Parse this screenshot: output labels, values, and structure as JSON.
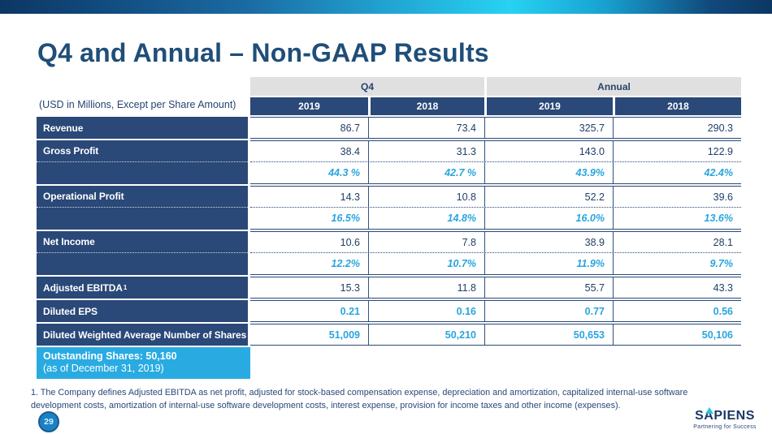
{
  "slide": {
    "title": "Q4 and Annual – Non-GAAP Results",
    "page_number": "29",
    "footnote": "1. The Company defines Adjusted EBITDA as net profit, adjusted for stock-based compensation expense, depreciation and amortization, capitalized internal-use software development costs, amortization of internal-use software development costs, interest expense, provision for income taxes and other income (expenses).",
    "logo": {
      "name": "SAPIENS",
      "tagline": "Partnering for Success"
    }
  },
  "colors": {
    "navy_band": "#2a4878",
    "navy_text": "#1f3f66",
    "accent_cyan": "#29abe2",
    "header_gray": "#e0e0e0",
    "title_navy": "#1f4e79"
  },
  "table": {
    "units_note": "(USD in Millions, Except per Share Amount)",
    "col_groups": [
      "Q4",
      "Annual"
    ],
    "col_years": [
      "2019",
      "2018",
      "2019",
      "2018"
    ],
    "rows": [
      {
        "label": "Revenue",
        "values": [
          "86.7",
          "73.4",
          "325.7",
          "290.3"
        ]
      },
      {
        "label": "Gross Profit",
        "values": [
          "38.4",
          "31.3",
          "143.0",
          "122.9"
        ]
      },
      {
        "label": "",
        "values": [
          "44.3 %",
          "42.7 %",
          "43.9%",
          "42.4%"
        ]
      },
      {
        "label": "Operational Profit",
        "values": [
          "14.3",
          "10.8",
          "52.2",
          "39.6"
        ]
      },
      {
        "label": "",
        "values": [
          "16.5%",
          "14.8%",
          "16.0%",
          "13.6%"
        ]
      },
      {
        "label": "Net Income",
        "values": [
          "10.6",
          "7.8",
          "38.9",
          "28.1"
        ]
      },
      {
        "label": "",
        "values": [
          "12.2%",
          "10.7%",
          "11.9%",
          "9.7%"
        ]
      },
      {
        "label": "Adjusted EBITDA",
        "sup": "1",
        "values": [
          "15.3",
          "11.8",
          "55.7",
          "43.3"
        ]
      },
      {
        "label": "Diluted EPS",
        "values": [
          "0.21",
          "0.16",
          "0.77",
          "0.56"
        ]
      },
      {
        "label": "Diluted Weighted Average Number of Shares",
        "values": [
          "51,009",
          "50,210",
          "50,653",
          "50,106"
        ]
      }
    ],
    "outstanding": {
      "line1": "Outstanding Shares: 50,160",
      "line2": "(as of December 31, 2019)"
    }
  }
}
